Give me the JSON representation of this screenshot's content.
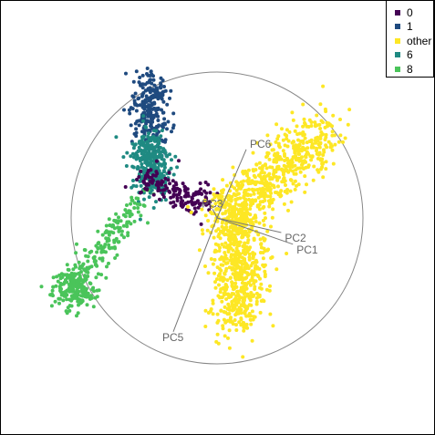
{
  "chart_data": {
    "type": "scatter",
    "title": "",
    "xlabel": "",
    "ylabel": "",
    "grid": false,
    "legend_placement": "top-right",
    "unit_circle": true,
    "series": [
      {
        "name": "0",
        "color": "#440154"
      },
      {
        "name": "1",
        "color": "#1f4a7f"
      },
      {
        "name": "other",
        "color": "#fde725"
      },
      {
        "name": "6",
        "color": "#1f8a82"
      },
      {
        "name": "8",
        "color": "#4ac45a"
      }
    ],
    "clusters": [
      {
        "series": "0",
        "n": 160,
        "segments": [
          [
            -0.52,
            0.28,
            -0.05,
            0.08,
            0.05
          ]
        ]
      },
      {
        "series": "1",
        "n": 250,
        "segments": [
          [
            -0.46,
            0.95,
            -0.44,
            0.55,
            0.06
          ]
        ]
      },
      {
        "series": "6",
        "n": 330,
        "segments": [
          [
            -0.47,
            0.55,
            -0.44,
            0.18,
            0.06
          ]
        ]
      },
      {
        "series": "8",
        "n": 360,
        "segments": [
          [
            -0.52,
            0.13,
            -1.03,
            -0.5,
            0.05
          ],
          [
            -1.03,
            -0.5,
            -0.92,
            -0.47,
            0.07
          ]
        ]
      },
      {
        "series": "other",
        "n": 1250,
        "segments": [
          [
            0.0,
            -0.05,
            0.75,
            0.62,
            0.09
          ],
          [
            0.15,
            0.05,
            0.15,
            -0.72,
            0.09
          ]
        ]
      }
    ],
    "loadings": [
      {
        "label": "PC1",
        "x": 0.52,
        "y": -0.18
      },
      {
        "label": "PC2",
        "x": 0.44,
        "y": -0.1
      },
      {
        "label": "PC3",
        "x": -0.03,
        "y": 0.06
      },
      {
        "label": "PC5",
        "x": -0.3,
        "y": -0.78
      },
      {
        "label": "PC6",
        "x": 0.2,
        "y": 0.47
      }
    ],
    "loading_labels": [
      "PC1",
      "PC2",
      "PC3",
      "PC5",
      "PC6"
    ]
  },
  "legend": {
    "items": [
      {
        "label": "0",
        "color": "#440154"
      },
      {
        "label": "1",
        "color": "#1f4a7f"
      },
      {
        "label": "other",
        "color": "#fde725"
      },
      {
        "label": "6",
        "color": "#1f8a82"
      },
      {
        "label": "8",
        "color": "#4ac45a"
      }
    ]
  }
}
